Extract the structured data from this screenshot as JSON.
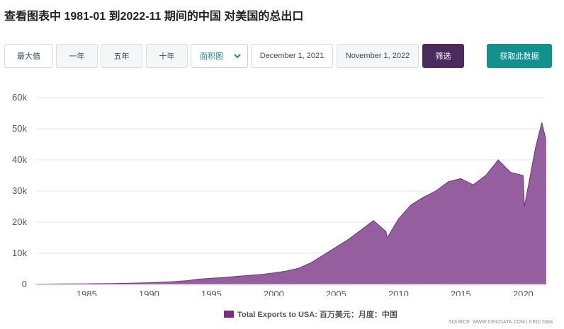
{
  "title": "查看图表中 1981-01 到2022-11 期间的中国 对美国的总出口",
  "toolbar": {
    "max_label": "最大值",
    "one_year_label": "一年",
    "five_year_label": "五年",
    "ten_year_label": "十年",
    "chart_type_label": "面积图",
    "start_date": "December 1, 2021",
    "end_date": "November 1, 2022",
    "filter_label": "筛选",
    "get_data_label": "获取此数据"
  },
  "colors": {
    "area_fill": "#955f9f",
    "area_stroke": "#7b2d86",
    "filter_button": "#4b2a5e",
    "get_button": "#13918d"
  },
  "legend": {
    "label": "Total Exports to USA: 百万美元：月度：中国"
  },
  "source": "SOURCE: WWW.CEICDATA.COM | CEIC Data",
  "chart_data": {
    "type": "area",
    "ylim": [
      0,
      60000
    ],
    "yticks": [
      "0",
      "10k",
      "20k",
      "30k",
      "40k",
      "50k",
      "60k"
    ],
    "xlim": [
      1981,
      2021.8
    ],
    "xticks": [
      "1985",
      "1990",
      "1995",
      "2000",
      "2005",
      "2010",
      "2015",
      "2020"
    ],
    "grid": true,
    "legend_position": "bottom",
    "series": [
      {
        "name": "Total Exports to USA: 百万美元：月度：中国",
        "x": [
          1981,
          1983,
          1985,
          1987,
          1989,
          1990,
          1991,
          1992,
          1993,
          1994,
          1995,
          1996,
          1997,
          1998,
          1999,
          2000,
          2001,
          2002,
          2003,
          2004,
          2005,
          2006,
          2007,
          2008,
          2009,
          2009.1,
          2010,
          2011,
          2012,
          2013,
          2014,
          2015,
          2016,
          2017,
          2018,
          2019,
          2020,
          2020.1,
          2021,
          2021.5,
          2021.8
        ],
        "y": [
          100,
          150,
          200,
          300,
          450,
          550,
          700,
          900,
          1200,
          1700,
          2000,
          2200,
          2600,
          2900,
          3200,
          3700,
          4300,
          5200,
          7000,
          9500,
          12000,
          14500,
          17500,
          20500,
          17000,
          15000,
          21000,
          25500,
          28000,
          30000,
          33000,
          34000,
          32000,
          35000,
          40000,
          36000,
          35000,
          25000,
          44000,
          52000,
          47000
        ]
      }
    ]
  }
}
